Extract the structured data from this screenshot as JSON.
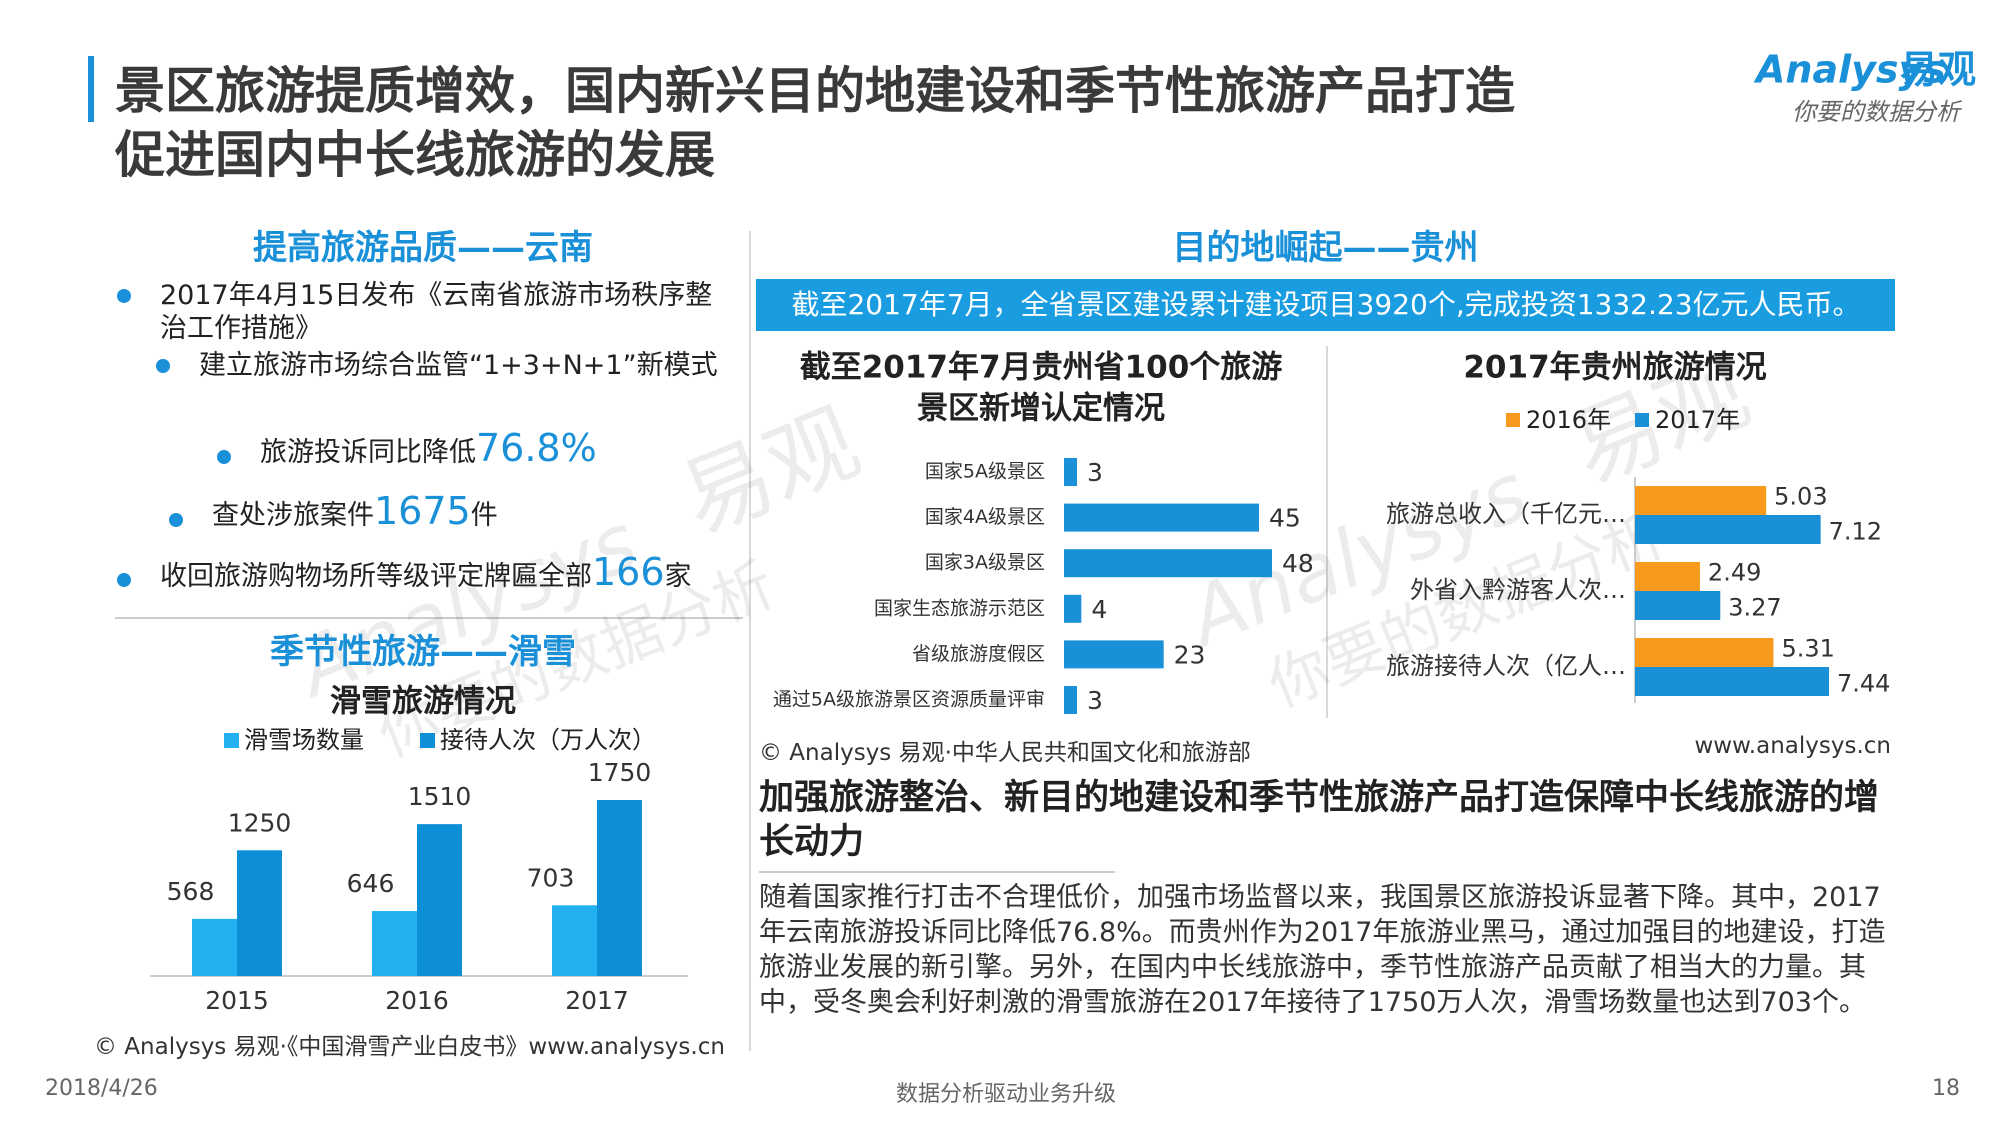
{
  "title": [
    "景区旅游提质增效，国内新兴目的地建设和季节性旅游产品打造",
    "促进国内中长线旅游的发展"
  ],
  "logo": {
    "name": "Analysys",
    "cn": "易观",
    "slogan": "你要的数据分析"
  },
  "watermark": {
    "name": "Analysys",
    "cn": "易观",
    "slogan": "你要的数据分析"
  },
  "yunnan": {
    "heading": "提高旅游品质——云南",
    "bullets": [
      {
        "before": "2017年4月15日发布《云南省旅游市场秩序整治工作措施》"
      },
      {
        "before": "建立旅游市场综合监管“1+3+N+1”新模式"
      },
      {
        "before": "旅游投诉同比降低",
        "highlight": "76.8%"
      },
      {
        "before": "查处涉旅案件",
        "highlight": "1675",
        "after": "件"
      },
      {
        "before": "收回旅游购物场所等级评定牌匾全部",
        "highlight": "166",
        "after": "家"
      }
    ]
  },
  "ski": {
    "heading": "季节性旅游——滑雪",
    "source": "© Analysys 易观·《中国滑雪产业白皮书》www.analysys.cn"
  },
  "guizhou": {
    "heading": "目的地崛起——贵州",
    "banner": "截至2017年7月，全省景区建设累计建设项目3920个,完成投资1332.23亿元人民币。",
    "source": "© Analysys 易观·中华人民共和国文化和旅游部",
    "site": "www.analysys.cn"
  },
  "summary": {
    "heading": "加强旅游整治、新目的地建设和季节性旅游产品打造保障中长线旅游的增长动力",
    "body": "随着国家推行打击不合理低价，加强市场监督以来，我国景区旅游投诉显著下降。其中，2017年云南旅游投诉同比降低76.8%。而贵州作为2017年旅游业黑马，通过加强目的地建设，打造旅游业发展的新引擎。另外，在国内中长线旅游中，季节性旅游产品贡献了相当大的力量。其中，受冬奥会利好刺激的滑雪旅游在2017年接待了1750万人次，滑雪场数量也达到703个。"
  },
  "footer": {
    "date": "2018/4/26",
    "slogan": "数据分析驱动业务升级",
    "page": "18"
  },
  "chart_data": [
    {
      "type": "bar",
      "title": "滑雪旅游情况",
      "categories": [
        "2015",
        "2016",
        "2017"
      ],
      "series": [
        {
          "name": "滑雪场数量",
          "color": "#22b0f0",
          "values": [
            568,
            646,
            703
          ]
        },
        {
          "name": "接待人次（万人次）",
          "color": "#0d8fd8",
          "values": [
            1250,
            1510,
            1750
          ]
        }
      ]
    },
    {
      "type": "barh",
      "title": [
        "截至2017年7月贵州省100个旅游",
        "景区新增认定情况"
      ],
      "categories": [
        "国家5A级景区",
        "国家4A级景区",
        "国家3A级景区",
        "国家生态旅游示范区",
        "省级旅游度假区",
        "通过5A级旅游景区资源质量评审"
      ],
      "values": [
        3,
        45,
        48,
        4,
        23,
        3
      ],
      "color": "#1a90d8"
    },
    {
      "type": "barh",
      "title": "2017年贵州旅游情况",
      "categories": [
        "旅游总收入（千亿元…",
        "外省入黔游客人次…",
        "旅游接待人次（亿人…"
      ],
      "series": [
        {
          "name": "2016年",
          "color": "#f89a1c",
          "values": [
            5.03,
            2.49,
            5.31
          ]
        },
        {
          "name": "2017年",
          "color": "#1a90d8",
          "values": [
            7.12,
            3.27,
            7.44
          ]
        }
      ]
    }
  ]
}
